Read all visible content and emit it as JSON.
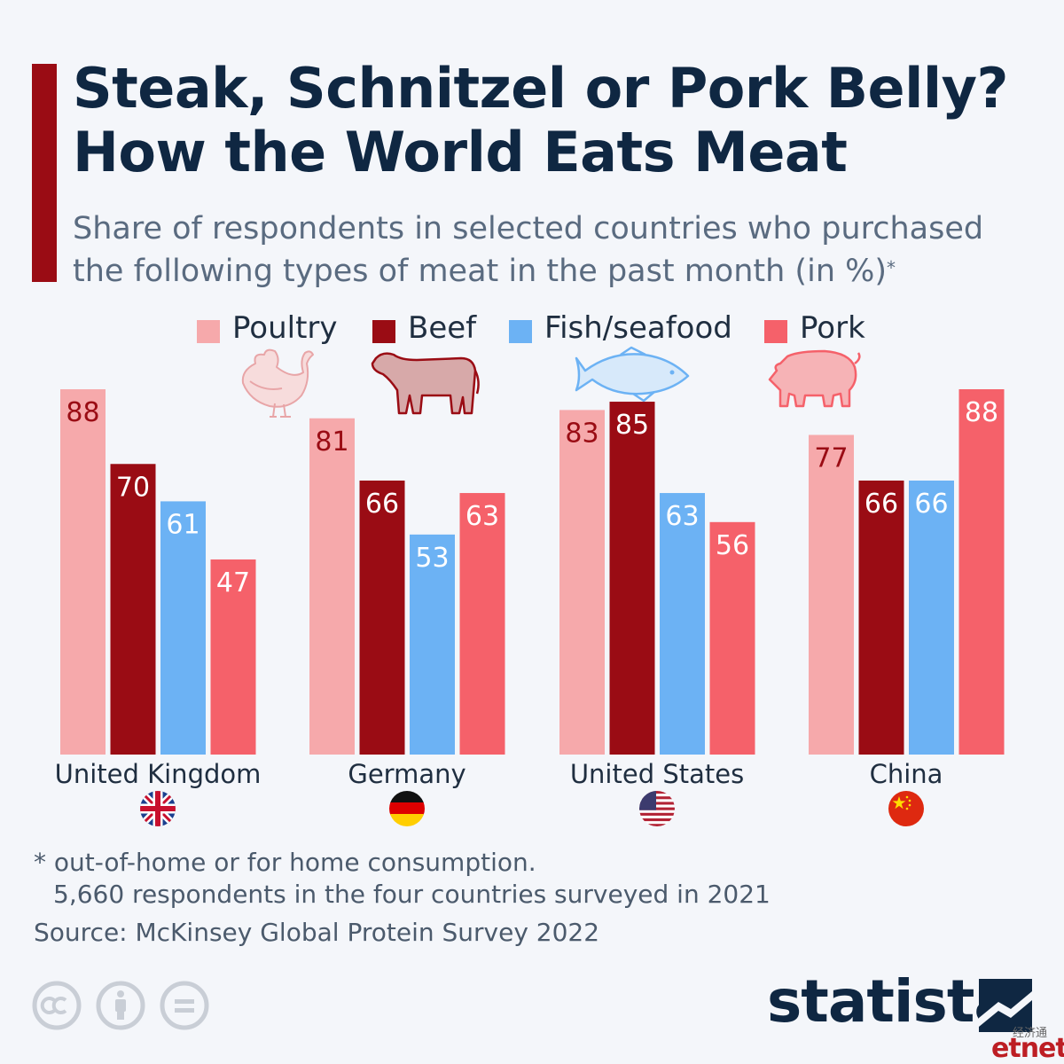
{
  "title_lines": [
    "Steak, Schnitzel or Pork Belly?",
    "How the World Eats Meat"
  ],
  "subtitle_lines": [
    "Share of respondents in selected countries who purchased",
    "the following types of meat in the past month (in %)"
  ],
  "subtitle_mark": "*",
  "legend": [
    {
      "label": "Poultry",
      "color": "#f6a9ab",
      "icon": "chicken-icon"
    },
    {
      "label": "Beef",
      "color": "#9a0c14",
      "icon": "cow-icon"
    },
    {
      "label": "Fish/seafood",
      "color": "#6cb2f4",
      "icon": "fish-icon"
    },
    {
      "label": "Pork",
      "color": "#f5616a",
      "icon": "pig-icon"
    }
  ],
  "chart_data": {
    "type": "bar",
    "categories": [
      "United Kingdom",
      "Germany",
      "United States",
      "China"
    ],
    "series": [
      {
        "name": "Poultry",
        "values": [
          88,
          81,
          83,
          77
        ],
        "color": "#f6a9ab",
        "label_color": "#9a0c14"
      },
      {
        "name": "Beef",
        "values": [
          70,
          66,
          85,
          66
        ],
        "color": "#9a0c14",
        "label_color": "#ffffff"
      },
      {
        "name": "Fish/seafood",
        "values": [
          61,
          53,
          63,
          66
        ],
        "color": "#6cb2f4",
        "label_color": "#ffffff"
      },
      {
        "name": "Pork",
        "values": [
          47,
          63,
          56,
          88
        ],
        "color": "#f5616a",
        "label_color": "#ffffff"
      }
    ],
    "ylim": [
      0,
      88
    ],
    "grid": false,
    "legend_position": "top-center"
  },
  "flags": [
    "uk-flag-icon",
    "germany-flag-icon",
    "us-flag-icon",
    "china-flag-icon"
  ],
  "footnote_1": "* out-of-home or for home consumption.",
  "footnote_2": "5,660 respondents in the four countries surveyed in 2021",
  "source": "Source: McKinsey Global Protein Survey 2022",
  "brand": "statista",
  "watermark_cn": "经济通",
  "watermark": "etnet"
}
